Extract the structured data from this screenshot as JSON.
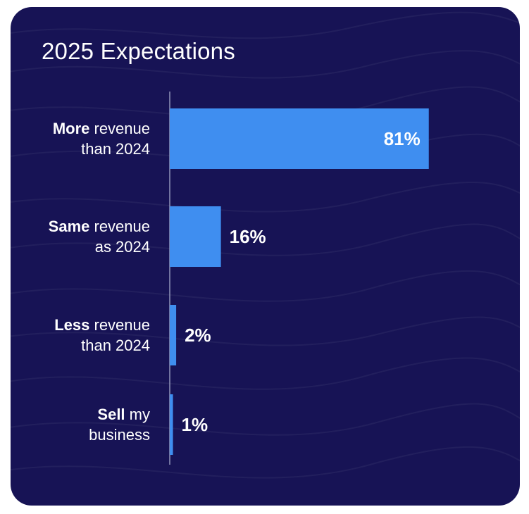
{
  "colors": {
    "background": "#171355",
    "bar": "#3f8ef0",
    "text": "#ffffff",
    "axis": "#8f93b8"
  },
  "chart_data": {
    "type": "bar",
    "orientation": "horizontal",
    "title": "2025 Expectations",
    "xlabel": "",
    "ylabel": "",
    "xlim": [
      0,
      100
    ],
    "grid": false,
    "legend": "none",
    "categories": [
      {
        "bold": "More",
        "rest": " revenue",
        "line2": "than 2024"
      },
      {
        "bold": "Same",
        "rest": " revenue",
        "line2": "as 2024"
      },
      {
        "bold": "Less",
        "rest": " revenue",
        "line2": "than 2024"
      },
      {
        "bold": "Sell",
        "rest": " my",
        "line2": "business"
      }
    ],
    "values": [
      81,
      16,
      2,
      1
    ],
    "data_labels": [
      "81%",
      "16%",
      "2%",
      "1%"
    ]
  }
}
